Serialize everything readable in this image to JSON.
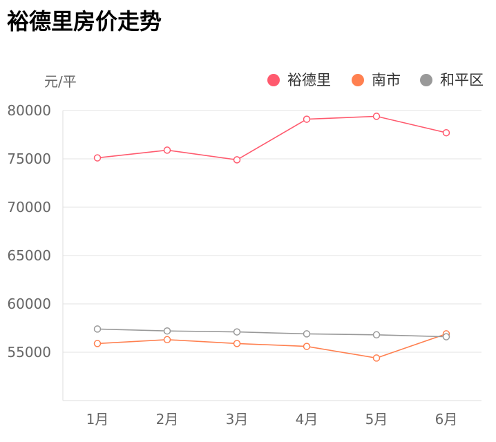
{
  "title": "裕德里房价走势",
  "chart_data": {
    "type": "line",
    "title": "裕德里房价走势",
    "ylabel": "元/平",
    "xlabel": "",
    "categories": [
      "1月",
      "2月",
      "3月",
      "4月",
      "5月",
      "6月"
    ],
    "ylim": [
      50000,
      80000
    ],
    "yticks": [
      "55000",
      "60000",
      "65000",
      "70000",
      "75000",
      "80000"
    ],
    "grid": true,
    "legend_position": "top-right",
    "series": [
      {
        "name": "裕德里",
        "color": "#ff5a6e",
        "values": [
          75100,
          75900,
          74900,
          79100,
          79400,
          77700
        ]
      },
      {
        "name": "南市",
        "color": "#ff8050",
        "values": [
          55900,
          56300,
          55900,
          55600,
          54400,
          56900
        ]
      },
      {
        "name": "和平区",
        "color": "#999999",
        "values": [
          57400,
          57200,
          57100,
          56900,
          56800,
          56600
        ]
      }
    ]
  }
}
